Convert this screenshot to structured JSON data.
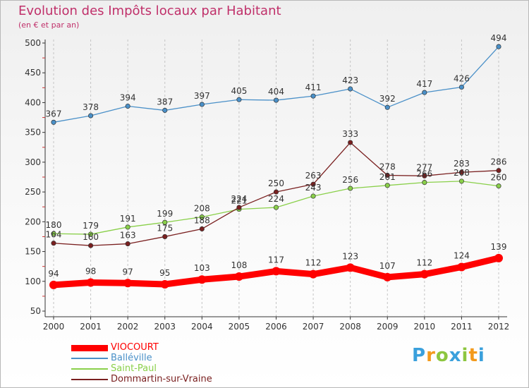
{
  "chart_data": {
    "type": "line",
    "title": "Evolution des Impôts locaux par Habitant",
    "subtitle": "(en € et par an)",
    "xlabel": "",
    "ylabel": "",
    "ylim": [
      50,
      500
    ],
    "yticks": [
      50,
      100,
      150,
      200,
      250,
      300,
      350,
      400,
      450,
      500
    ],
    "grid": "vertical dashed",
    "legend": "bottom-left",
    "categories": [
      "2000",
      "2001",
      "2002",
      "2003",
      "2004",
      "2005",
      "2006",
      "2007",
      "2008",
      "2009",
      "2010",
      "2011",
      "2012"
    ],
    "series": [
      {
        "name": "VIOCOURT",
        "color": "#ff0000",
        "values": [
          94,
          98,
          97,
          95,
          103,
          108,
          117,
          112,
          123,
          107,
          112,
          124,
          139
        ]
      },
      {
        "name": "Balléville",
        "color": "#4a90c8",
        "values": [
          367,
          378,
          394,
          387,
          397,
          405,
          404,
          411,
          423,
          392,
          417,
          426,
          494
        ]
      },
      {
        "name": "Saint-Paul",
        "color": "#8ad04a",
        "values": [
          180,
          179,
          191,
          199,
          208,
          221,
          224,
          243,
          256,
          261,
          266,
          268,
          260
        ]
      },
      {
        "name": "Dommartin-sur-Vraine",
        "color": "#7a2020",
        "values": [
          164,
          160,
          163,
          175,
          188,
          224,
          250,
          263,
          333,
          278,
          277,
          283,
          286
        ]
      }
    ]
  },
  "brand": {
    "letters": [
      "P",
      "r",
      "o",
      "x",
      "i",
      "t",
      "i"
    ]
  }
}
